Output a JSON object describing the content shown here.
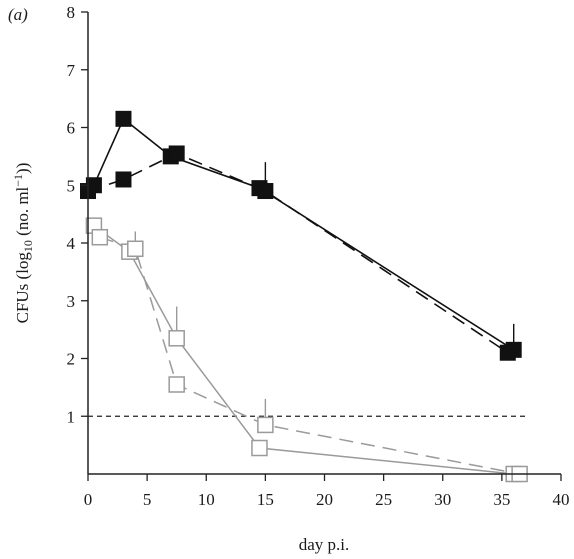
{
  "chart_data": {
    "type": "line",
    "panel_label": "(a)",
    "xlabel": "day p.i.",
    "ylabel_main": "CFUs (log",
    "ylabel_sub": "10",
    "ylabel_rest": " (no. ml",
    "ylabel_sup": "−1",
    "ylabel_end": "))",
    "xlim": [
      0,
      40
    ],
    "ylim": [
      0,
      8
    ],
    "xticks": [
      "0",
      "5",
      "10",
      "15",
      "20",
      "25",
      "30",
      "35",
      "40"
    ],
    "yticks": [
      "1",
      "2",
      "3",
      "4",
      "5",
      "6",
      "7",
      "8"
    ],
    "threshold": 1,
    "colors": {
      "filled": "#111111",
      "open_stroke": "#9a9a9a",
      "open_fill": "#ffffff",
      "axis": "#222222"
    },
    "series": [
      {
        "marker": "filled-square",
        "line": "solid",
        "points": [
          {
            "x": 0.5,
            "y": 5.0
          },
          {
            "x": 3,
            "y": 6.15
          },
          {
            "x": 7,
            "y": 5.5
          },
          {
            "x": 14.5,
            "y": 4.95
          },
          {
            "x": 36,
            "y": 2.15
          }
        ]
      },
      {
        "marker": "filled-square",
        "line": "dashed",
        "points": [
          {
            "x": 0,
            "y": 4.9
          },
          {
            "x": 3,
            "y": 5.1
          },
          {
            "x": 7.5,
            "y": 5.55
          },
          {
            "x": 15,
            "y": 4.9
          },
          {
            "x": 35.5,
            "y": 2.1
          }
        ]
      },
      {
        "marker": "open-square",
        "line": "solid",
        "points": [
          {
            "x": 0.5,
            "y": 4.3
          },
          {
            "x": 3.5,
            "y": 3.85
          },
          {
            "x": 7.5,
            "y": 2.35
          },
          {
            "x": 14.5,
            "y": 0.45
          },
          {
            "x": 36,
            "y": 0.0
          }
        ]
      },
      {
        "marker": "open-square",
        "line": "dashed",
        "points": [
          {
            "x": 1,
            "y": 4.1
          },
          {
            "x": 4,
            "y": 3.9
          },
          {
            "x": 7.5,
            "y": 1.55
          },
          {
            "x": 15,
            "y": 0.85
          },
          {
            "x": 36.5,
            "y": 0.0
          }
        ]
      }
    ],
    "error_bars": [
      {
        "x": 15,
        "y_low": 4.9,
        "y_high": 5.4,
        "style": "filled"
      },
      {
        "x": 36,
        "y_low": 2.15,
        "y_high": 2.6,
        "style": "filled"
      },
      {
        "x": 4,
        "y_low": 3.9,
        "y_high": 4.2,
        "style": "open"
      },
      {
        "x": 7.5,
        "y_low": 2.35,
        "y_high": 2.9,
        "style": "open"
      },
      {
        "x": 15,
        "y_low": 0.85,
        "y_high": 1.3,
        "style": "open"
      }
    ]
  }
}
